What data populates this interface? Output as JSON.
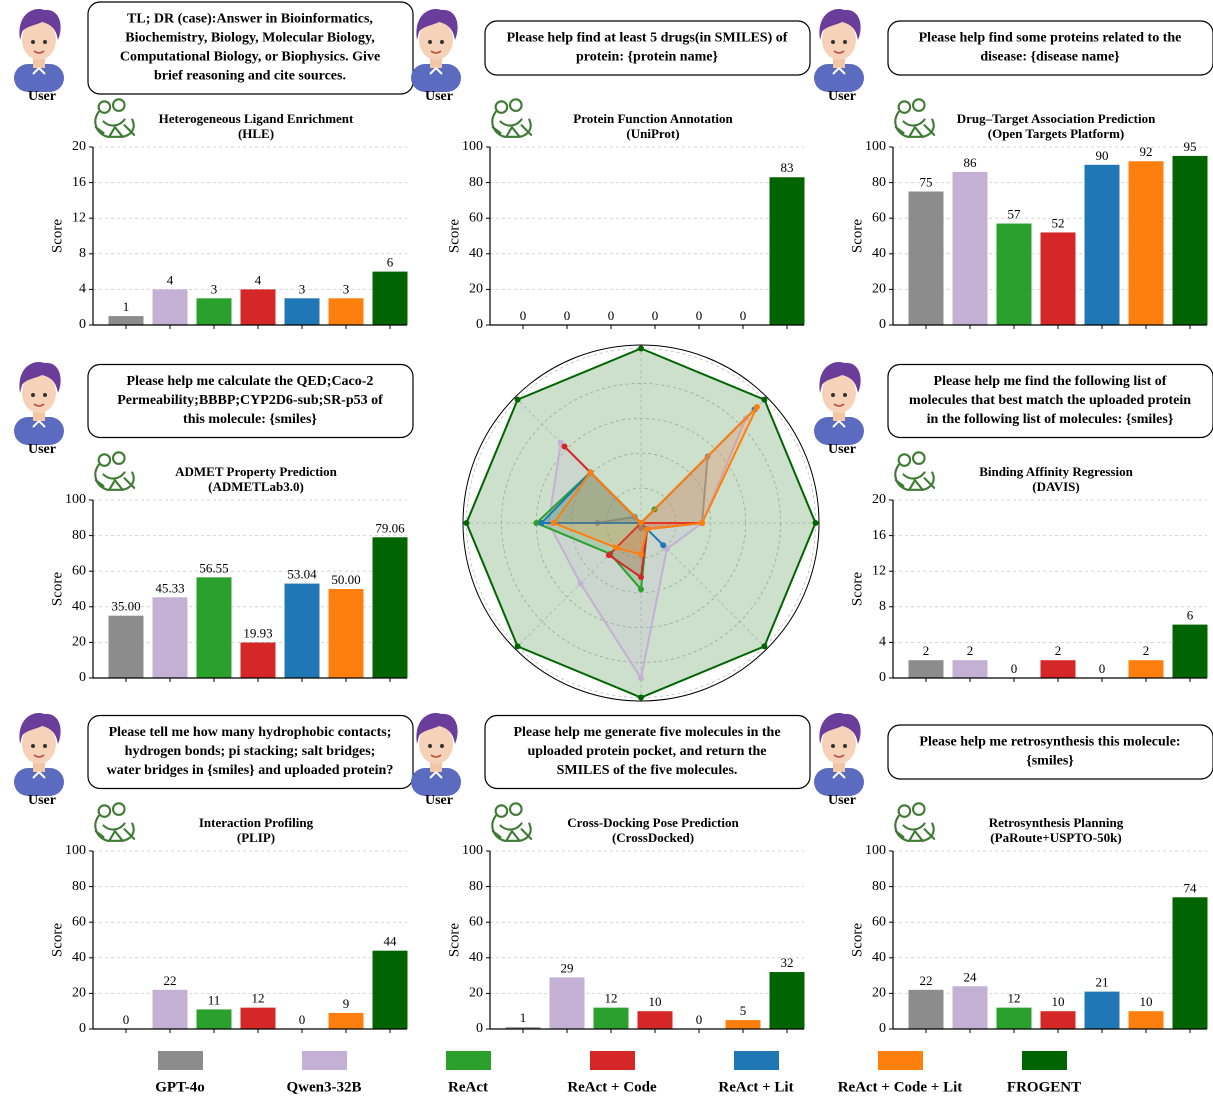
{
  "legend": {
    "names": [
      "GPT-4o",
      "Qwen3-32B",
      "ReAct",
      "ReAct + Code",
      "ReAct + Lit",
      "ReAct + Code + Lit",
      "FROGENT"
    ],
    "colors": [
      "#8c8c8c",
      "#c5b0d5",
      "#2ca02c",
      "#d62728",
      "#1f77b4",
      "#ff7f0e",
      "#006400"
    ]
  },
  "chart_data": [
    {
      "type": "bar",
      "user_label": "User",
      "prompt": [
        "TL; DR (case):Answer in Bioinformatics,",
        "Biochemistry, Biology, Molecular Biology,",
        "Computational Biology, or Biophysics. Give",
        "brief reasoning and cite sources."
      ],
      "title": "Heterogeneous Ligand Enrichment",
      "subtitle": "(HLE)",
      "ylabel": "Score",
      "values": [
        1,
        4,
        3,
        4,
        3,
        3,
        6
      ],
      "ylim": [
        0,
        20
      ],
      "yticks": [
        0,
        4,
        8,
        12,
        16,
        20
      ],
      "grid": true
    },
    {
      "type": "bar",
      "user_label": "User",
      "prompt": [
        "Please help find at least 5 drugs(in SMILES) of",
        "protein: {protein name}"
      ],
      "title": "Protein Function Annotation",
      "subtitle": "(UniProt)",
      "ylabel": "Score",
      "values": [
        0,
        0,
        0,
        0,
        0,
        0,
        83
      ],
      "ylim": [
        0,
        100
      ],
      "yticks": [
        0,
        20,
        40,
        60,
        80,
        100
      ],
      "grid": true
    },
    {
      "type": "bar",
      "user_label": "User",
      "prompt": [
        "Please help find some proteins related to the",
        "disease: {disease name}"
      ],
      "title": "Drug–Target Association Prediction",
      "subtitle": "(Open Targets Platform)",
      "ylabel": "Score",
      "values": [
        75,
        86,
        57,
        52,
        90,
        92,
        95
      ],
      "ylim": [
        0,
        100
      ],
      "yticks": [
        0,
        20,
        40,
        60,
        80,
        100
      ],
      "grid": true
    },
    {
      "type": "bar",
      "user_label": "User",
      "prompt": [
        "Please help me calculate the QED;Caco-2",
        "Permeability;BBBP;CYP2D6-sub;SR-p53 of",
        "this molecule: {smiles}"
      ],
      "title": "ADMET Property Prediction",
      "subtitle": "(ADMETLab3.0)",
      "ylabel": "Score",
      "values": [
        35.0,
        45.33,
        56.55,
        19.93,
        53.04,
        50.0,
        79.06
      ],
      "value_labels": [
        "35.00",
        "45.33",
        "56.55",
        "19.93",
        "53.04",
        "50.00",
        "79.06"
      ],
      "ylim": [
        0,
        100
      ],
      "yticks": [
        0,
        20,
        40,
        60,
        80,
        100
      ],
      "grid": true
    },
    {
      "type": "bar",
      "user_label": "User",
      "prompt": [
        "Please help me find the following list of",
        "molecules that best match the uploaded protein",
        "in the following list of molecules: {smiles}"
      ],
      "title": "Binding Affinity Regression",
      "subtitle": "(DAVIS)",
      "ylabel": "Score",
      "values": [
        2,
        2,
        0,
        2,
        0,
        2,
        6
      ],
      "ylim": [
        0,
        20
      ],
      "yticks": [
        0,
        4,
        8,
        12,
        16,
        20
      ],
      "grid": true
    },
    {
      "type": "bar",
      "user_label": "User",
      "prompt": [
        "Please tell me how many hydrophobic contacts;",
        "hydrogen bonds; pi stacking; salt bridges;",
        "water bridges in {smiles} and uploaded protein?"
      ],
      "title": "Interaction Profiling",
      "subtitle": "(PLIP)",
      "ylabel": "Score",
      "values": [
        0,
        22,
        11,
        12,
        0,
        9,
        44
      ],
      "ylim": [
        0,
        100
      ],
      "yticks": [
        0,
        20,
        40,
        60,
        80,
        100
      ],
      "grid": true
    },
    {
      "type": "bar",
      "user_label": "User",
      "prompt": [
        "Please help me generate five molecules in the",
        "uploaded protein pocket, and return the",
        "SMILES of the five molecules."
      ],
      "title": "Cross-Docking Pose Prediction",
      "subtitle": "(CrossDocked)",
      "ylabel": "Score",
      "values": [
        1,
        29,
        12,
        10,
        0,
        5,
        32
      ],
      "ylim": [
        0,
        100
      ],
      "yticks": [
        0,
        20,
        40,
        60,
        80,
        100
      ],
      "grid": true
    },
    {
      "type": "bar",
      "user_label": "User",
      "prompt": [
        "Please help me retrosynthesis this molecule:",
        "{smiles}"
      ],
      "title": "Retrosynthesis Planning",
      "subtitle": "(PaRoute+USPTO-50k)",
      "ylabel": "Score",
      "values": [
        22,
        24,
        12,
        10,
        21,
        10,
        74
      ],
      "ylim": [
        0,
        100
      ],
      "yticks": [
        0,
        20,
        40,
        60,
        80,
        100
      ],
      "grid": true
    },
    {
      "type": "radar",
      "rlim": [
        0,
        1.02
      ],
      "rgrid": [
        0.2,
        0.4,
        0.6,
        0.8,
        1.0
      ],
      "values": [
        [
          0,
          0.54,
          0.35,
          0.05,
          0.03,
          0.0,
          0.25,
          0.05
        ],
        [
          0,
          0.85,
          0.35,
          0.21,
          0.89,
          0.49,
          0.53,
          0.65
        ],
        [
          0,
          0.11,
          0.0,
          0.05,
          0.38,
          0.25,
          0.6,
          0.41
        ],
        [
          0,
          0.0,
          0.35,
          0.05,
          0.31,
          0.26,
          0.0,
          0.62
        ],
        [
          0,
          0.92,
          0.0,
          0.18,
          0.0,
          0.0,
          0.57,
          0.41
        ],
        [
          0,
          0.94,
          0.35,
          0.05,
          0.18,
          0.2,
          0.5,
          0.41
        ],
        [
          1,
          1,
          1,
          1,
          1,
          1,
          1,
          1
        ]
      ]
    }
  ]
}
